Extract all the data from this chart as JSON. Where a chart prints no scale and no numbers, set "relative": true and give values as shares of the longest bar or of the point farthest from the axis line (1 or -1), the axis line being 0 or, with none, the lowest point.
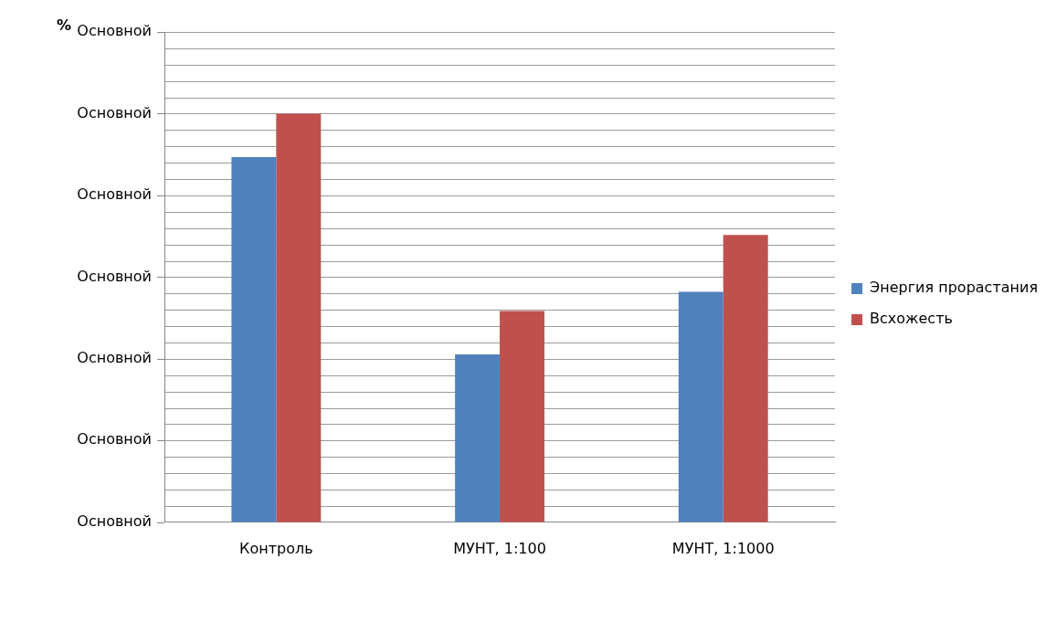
{
  "chart_data": {
    "type": "bar",
    "relative": true,
    "categories": [
      "Контроль",
      "МУНТ, 1:100",
      "МУНТ, 1:1000"
    ],
    "series": [
      {
        "name": "Энергия прорастания",
        "color": "#4f81bd",
        "values": [
          0.894,
          0.411,
          0.564
        ]
      },
      {
        "name": "Всхожесть",
        "color": "#c0504d",
        "values": [
          1,
          0.517,
          0.703
        ]
      }
    ],
    "annotations": [
      "%",
      "Основной",
      "Основной",
      "Основной",
      "Основной",
      "Основной",
      "Основной",
      "Основной"
    ],
    "grid": "y",
    "legend": "right"
  }
}
